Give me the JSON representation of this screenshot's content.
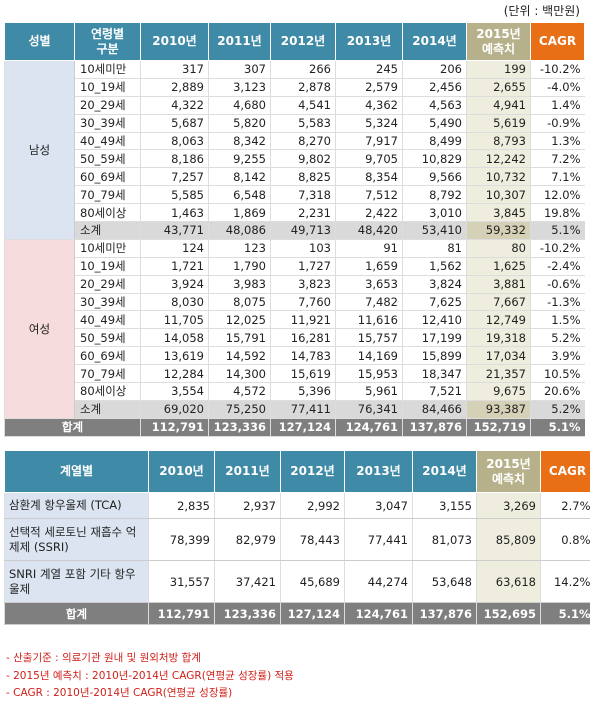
{
  "unit_label": "(단위 : 백만원)",
  "t1_headers": {
    "gender": "성별",
    "age": "연령별 구분",
    "y2010": "2010년",
    "y2011": "2011년",
    "y2012": "2012년",
    "y2013": "2013년",
    "y2014": "2014년",
    "est": "2015년 예측치",
    "cagr": "CAGR"
  },
  "male": {
    "label": "남성",
    "rows": [
      [
        "10세미만",
        "317",
        "307",
        "266",
        "245",
        "206",
        "199",
        "-10.2%"
      ],
      [
        "10_19세",
        "2,889",
        "3,123",
        "2,878",
        "2,579",
        "2,456",
        "2,655",
        "-4.0%"
      ],
      [
        "20_29세",
        "4,322",
        "4,680",
        "4,541",
        "4,362",
        "4,563",
        "4,941",
        "1.4%"
      ],
      [
        "30_39세",
        "5,687",
        "5,820",
        "5,583",
        "5,324",
        "5,490",
        "5,619",
        "-0.9%"
      ],
      [
        "40_49세",
        "8,063",
        "8,342",
        "8,270",
        "7,917",
        "8,499",
        "8,793",
        "1.3%"
      ],
      [
        "50_59세",
        "8,186",
        "9,255",
        "9,802",
        "9,705",
        "10,829",
        "12,242",
        "7.2%"
      ],
      [
        "60_69세",
        "7,257",
        "8,142",
        "8,825",
        "8,354",
        "9,566",
        "10,732",
        "7.1%"
      ],
      [
        "70_79세",
        "5,585",
        "6,548",
        "7,318",
        "7,512",
        "8,792",
        "10,307",
        "12.0%"
      ],
      [
        "80세이상",
        "1,463",
        "1,869",
        "2,231",
        "2,422",
        "3,010",
        "3,845",
        "19.8%"
      ],
      [
        "소계",
        "43,771",
        "48,086",
        "49,713",
        "48,420",
        "53,410",
        "59,332",
        "5.1%"
      ]
    ]
  },
  "female": {
    "label": "여성",
    "rows": [
      [
        "10세미만",
        "124",
        "123",
        "103",
        "91",
        "81",
        "80",
        "-10.2%"
      ],
      [
        "10_19세",
        "1,721",
        "1,790",
        "1,727",
        "1,659",
        "1,562",
        "1,625",
        "-2.4%"
      ],
      [
        "20_29세",
        "3,924",
        "3,983",
        "3,823",
        "3,653",
        "3,824",
        "3,881",
        "-0.6%"
      ],
      [
        "30_39세",
        "8,030",
        "8,075",
        "7,760",
        "7,482",
        "7,625",
        "7,667",
        "-1.3%"
      ],
      [
        "40_49세",
        "11,705",
        "12,025",
        "11,921",
        "11,616",
        "12,410",
        "12,749",
        "1.5%"
      ],
      [
        "50_59세",
        "14,058",
        "15,791",
        "16,281",
        "15,757",
        "17,199",
        "19,318",
        "5.2%"
      ],
      [
        "60_69세",
        "13,619",
        "14,592",
        "14,783",
        "14,169",
        "15,899",
        "17,034",
        "3.9%"
      ],
      [
        "70_79세",
        "12,284",
        "14,300",
        "15,619",
        "15,953",
        "18,347",
        "21,357",
        "10.5%"
      ],
      [
        "80세이상",
        "3,554",
        "4,572",
        "5,396",
        "5,961",
        "7,521",
        "9,675",
        "20.6%"
      ],
      [
        "소계",
        "69,020",
        "75,250",
        "77,411",
        "76,341",
        "84,466",
        "93,387",
        "5.2%"
      ]
    ]
  },
  "t1_total": [
    "합계",
    "112,791",
    "123,336",
    "127,124",
    "124,761",
    "137,876",
    "152,719",
    "5.1%"
  ],
  "t2_headers": {
    "cls": "계열별",
    "y2010": "2010년",
    "y2011": "2011년",
    "y2012": "2012년",
    "y2013": "2013년",
    "y2014": "2014년",
    "est": "2015년 예측치",
    "cagr": "CAGR"
  },
  "t2_rows": [
    [
      "삼환계 항우울제 (TCA)",
      "2,835",
      "2,937",
      "2,992",
      "3,047",
      "3,155",
      "3,269",
      "2.7%"
    ],
    [
      "선택적 세로토닌 재흡수 억제제 (SSRI)",
      "78,399",
      "82,979",
      "78,443",
      "77,441",
      "81,073",
      "85,809",
      "0.8%"
    ],
    [
      "SNRI 계열 포함 기타 항우울제",
      "31,557",
      "37,421",
      "45,689",
      "44,274",
      "53,648",
      "63,618",
      "14.2%"
    ]
  ],
  "t2_total": [
    "합계",
    "112,791",
    "123,336",
    "127,124",
    "124,761",
    "137,876",
    "152,695",
    "5.1%"
  ],
  "notes": [
    "- 산출기준 : 의료기관 원내 및 원외처방 합계",
    "- 2015년 예측치 : 2010년-2014년 CAGR(연평균 성장률) 적용",
    "- CAGR : 2010년-2014년 CAGR(연평균 성장률)"
  ]
}
